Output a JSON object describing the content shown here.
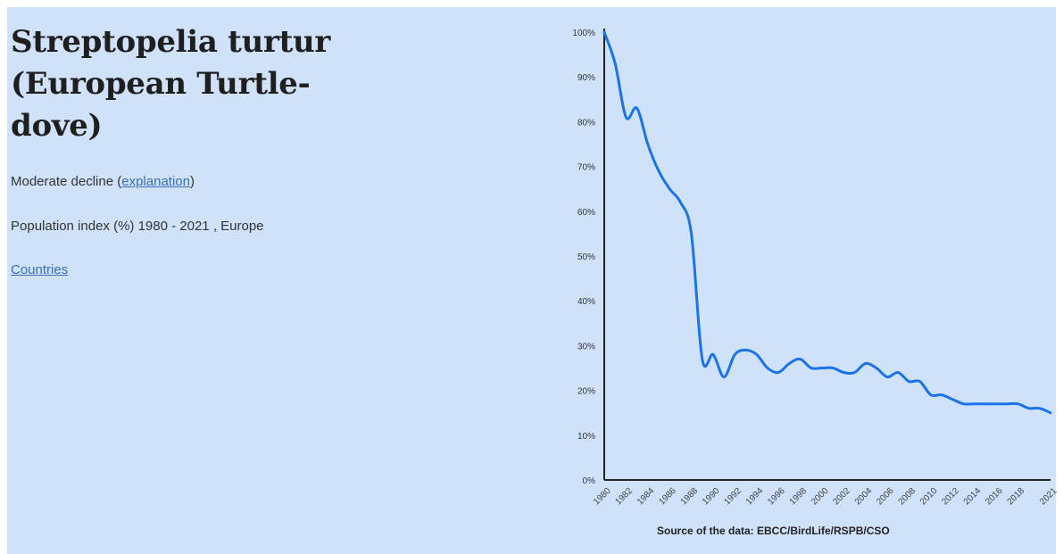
{
  "species": {
    "title_line1": "Streptopelia turtur",
    "title_line2": "(European Turtle-",
    "title_line3": "dove)"
  },
  "trend": {
    "label": "Moderate decline",
    "open_paren": " (",
    "link_text": "explanation",
    "close_paren": ")"
  },
  "index_label": "Population index (%) 1980 - 2021 , Europe",
  "countries_link": "Countries",
  "source_note": "Source of the data: EBCC/BirdLife/RSPB/CSO",
  "colors": {
    "background": "#cfe2fa",
    "line": "#1a73e8",
    "axis": "#222222"
  },
  "chart_data": {
    "type": "line",
    "title": "",
    "xlabel": "",
    "ylabel": "",
    "x": [
      1980,
      1981,
      1982,
      1983,
      1984,
      1985,
      1986,
      1987,
      1988,
      1989,
      1990,
      1991,
      1992,
      1993,
      1994,
      1995,
      1996,
      1997,
      1998,
      1999,
      2000,
      2001,
      2002,
      2003,
      2004,
      2005,
      2006,
      2007,
      2008,
      2009,
      2010,
      2011,
      2012,
      2013,
      2014,
      2015,
      2016,
      2017,
      2018,
      2019,
      2020,
      2021
    ],
    "values": [
      100,
      93,
      81,
      83,
      75,
      69,
      65,
      62,
      55,
      27,
      28,
      23,
      28,
      29,
      28,
      25,
      24,
      26,
      27,
      25,
      25,
      25,
      24,
      24,
      26,
      25,
      23,
      24,
      22,
      22,
      19,
      19,
      18,
      17,
      17,
      17,
      17,
      17,
      17,
      16,
      16,
      15
    ],
    "xlim": [
      1980,
      2021
    ],
    "ylim": [
      0,
      100
    ],
    "y_ticks": [
      "0%",
      "10%",
      "20%",
      "30%",
      "40%",
      "50%",
      "60%",
      "70%",
      "80%",
      "90%",
      "100%"
    ],
    "x_tick_labels": [
      "1980",
      "1982",
      "1984",
      "1986",
      "1988",
      "1990",
      "1992",
      "1994",
      "1996",
      "1998",
      "2000",
      "2002",
      "2004",
      "2006",
      "2008",
      "2010",
      "2012",
      "2014",
      "2016",
      "2018",
      "2021"
    ],
    "grid": false,
    "legend": "none"
  }
}
